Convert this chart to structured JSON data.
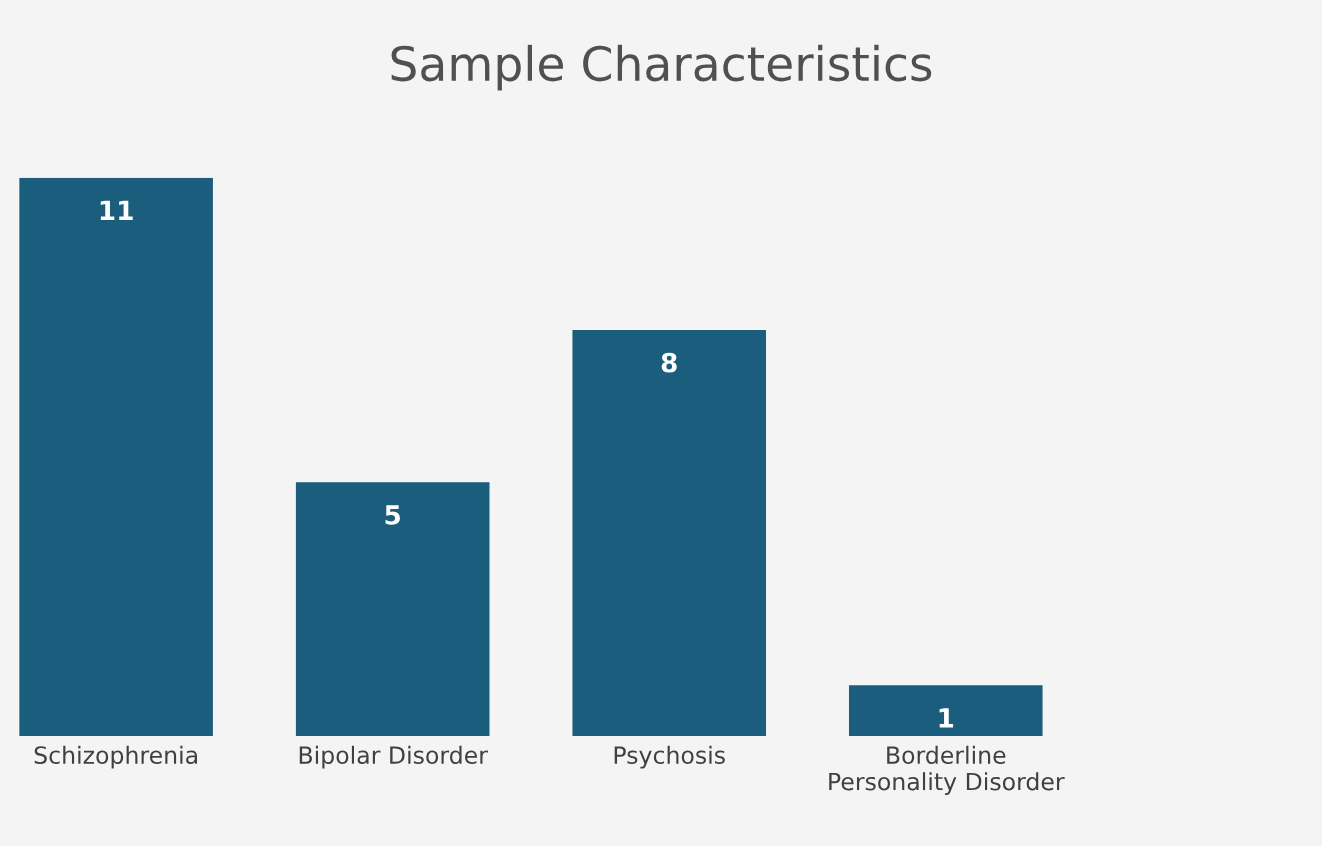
{
  "chart_data": {
    "type": "bar",
    "title": "Sample Characteristics",
    "categories": [
      "Schizophrenia",
      "Bipolar Disorder",
      "Psychosis",
      "Borderline\nPersonality Disorder"
    ],
    "values": [
      11,
      5,
      8,
      1
    ],
    "color": "#1b5d7c",
    "data_labels": true,
    "grid": false,
    "legend": false
  }
}
